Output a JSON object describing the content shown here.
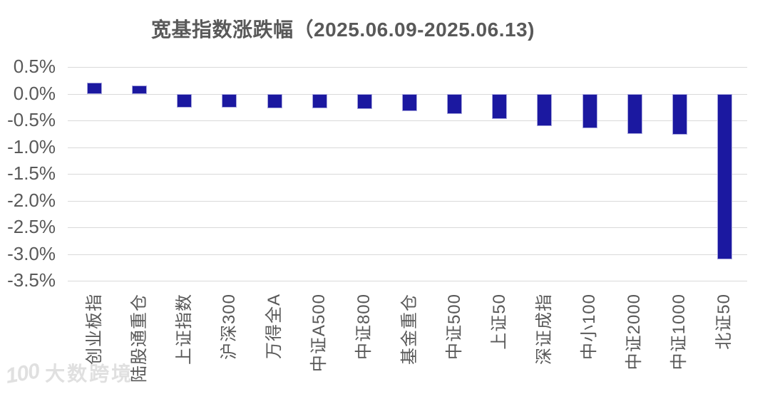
{
  "title": "宽基指数涨跌幅（2025.06.09-2025.06.13)",
  "watermark": {
    "logo_text": "100",
    "text": "大数跨境"
  },
  "colors": {
    "bar_fill": "#1b18a0",
    "bar_border": "#a9a8dd",
    "gridline": "#d9d9d9",
    "axis_text": "#595959",
    "title_text": "#595959"
  },
  "chart_data": {
    "type": "bar",
    "title": "宽基指数涨跌幅（2025.06.09-2025.06.13)",
    "categories": [
      "创业板指",
      "陆股通重仓",
      "上证指数",
      "沪深300",
      "万得全A",
      "中证A500",
      "中证800",
      "基金重仓",
      "中证500",
      "上证50",
      "深证成指",
      "中小100",
      "中证2000",
      "中证1000",
      "北证50"
    ],
    "values": [
      0.21,
      0.16,
      -0.26,
      -0.26,
      -0.27,
      -0.27,
      -0.28,
      -0.33,
      -0.38,
      -0.47,
      -0.6,
      -0.64,
      -0.75,
      -0.76,
      -3.1
    ],
    "unit": "%",
    "xlabel": "",
    "ylabel": "",
    "ylim": [
      -3.5,
      0.5
    ],
    "ytick_step": 0.5,
    "ytick_labels": [
      "0.5%",
      "0.0%",
      "-0.5%",
      "-1.0%",
      "-1.5%",
      "-2.0%",
      "-2.5%",
      "-3.0%",
      "-3.5%"
    ],
    "grid": true,
    "legend": null
  }
}
